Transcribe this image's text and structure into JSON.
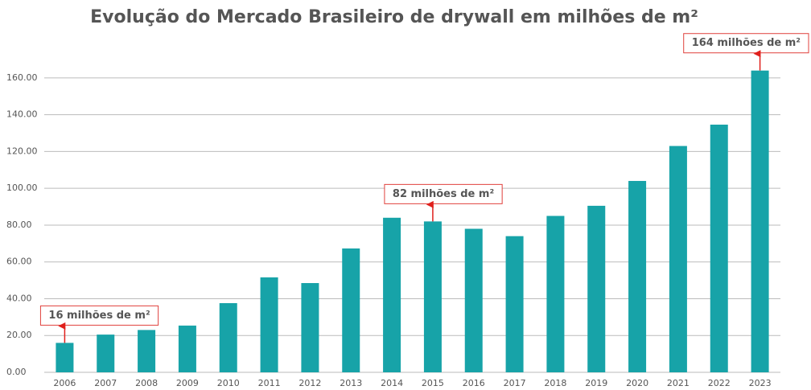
{
  "chart_data": {
    "type": "bar",
    "title": "Evolução do Mercado Brasileiro de drywall em milhões de m²",
    "categories": [
      "2006",
      "2007",
      "2008",
      "2009",
      "2010",
      "2011",
      "2012",
      "2013",
      "2014",
      "2015",
      "2016",
      "2017",
      "2018",
      "2019",
      "2020",
      "2021",
      "2022",
      "2023"
    ],
    "values": [
      16,
      20.5,
      23,
      25.4,
      37.6,
      51.6,
      48.5,
      67.3,
      84,
      82,
      78,
      74,
      85,
      90.5,
      104,
      123,
      134.6,
      164
    ],
    "color": "#17a3a8",
    "ylim": [
      0,
      170
    ],
    "yticks": [
      {
        "value": 0,
        "label": "0.00"
      },
      {
        "value": 20,
        "label": "20.00"
      },
      {
        "value": 40,
        "label": "40.00"
      },
      {
        "value": 60,
        "label": "60.00"
      },
      {
        "value": 80,
        "label": "80.00"
      },
      {
        "value": 100,
        "label": "100.00"
      },
      {
        "value": 120,
        "label": "120.00"
      },
      {
        "value": 140,
        "label": "140.00"
      },
      {
        "value": 160,
        "label": "160.00"
      }
    ],
    "grid": true,
    "annotations": [
      {
        "text": "16 milhões de m²",
        "x": "2006"
      },
      {
        "text": "82 milhões de m²",
        "x": "2015"
      },
      {
        "text": "164 milhões de m²",
        "x": "2023"
      }
    ]
  }
}
